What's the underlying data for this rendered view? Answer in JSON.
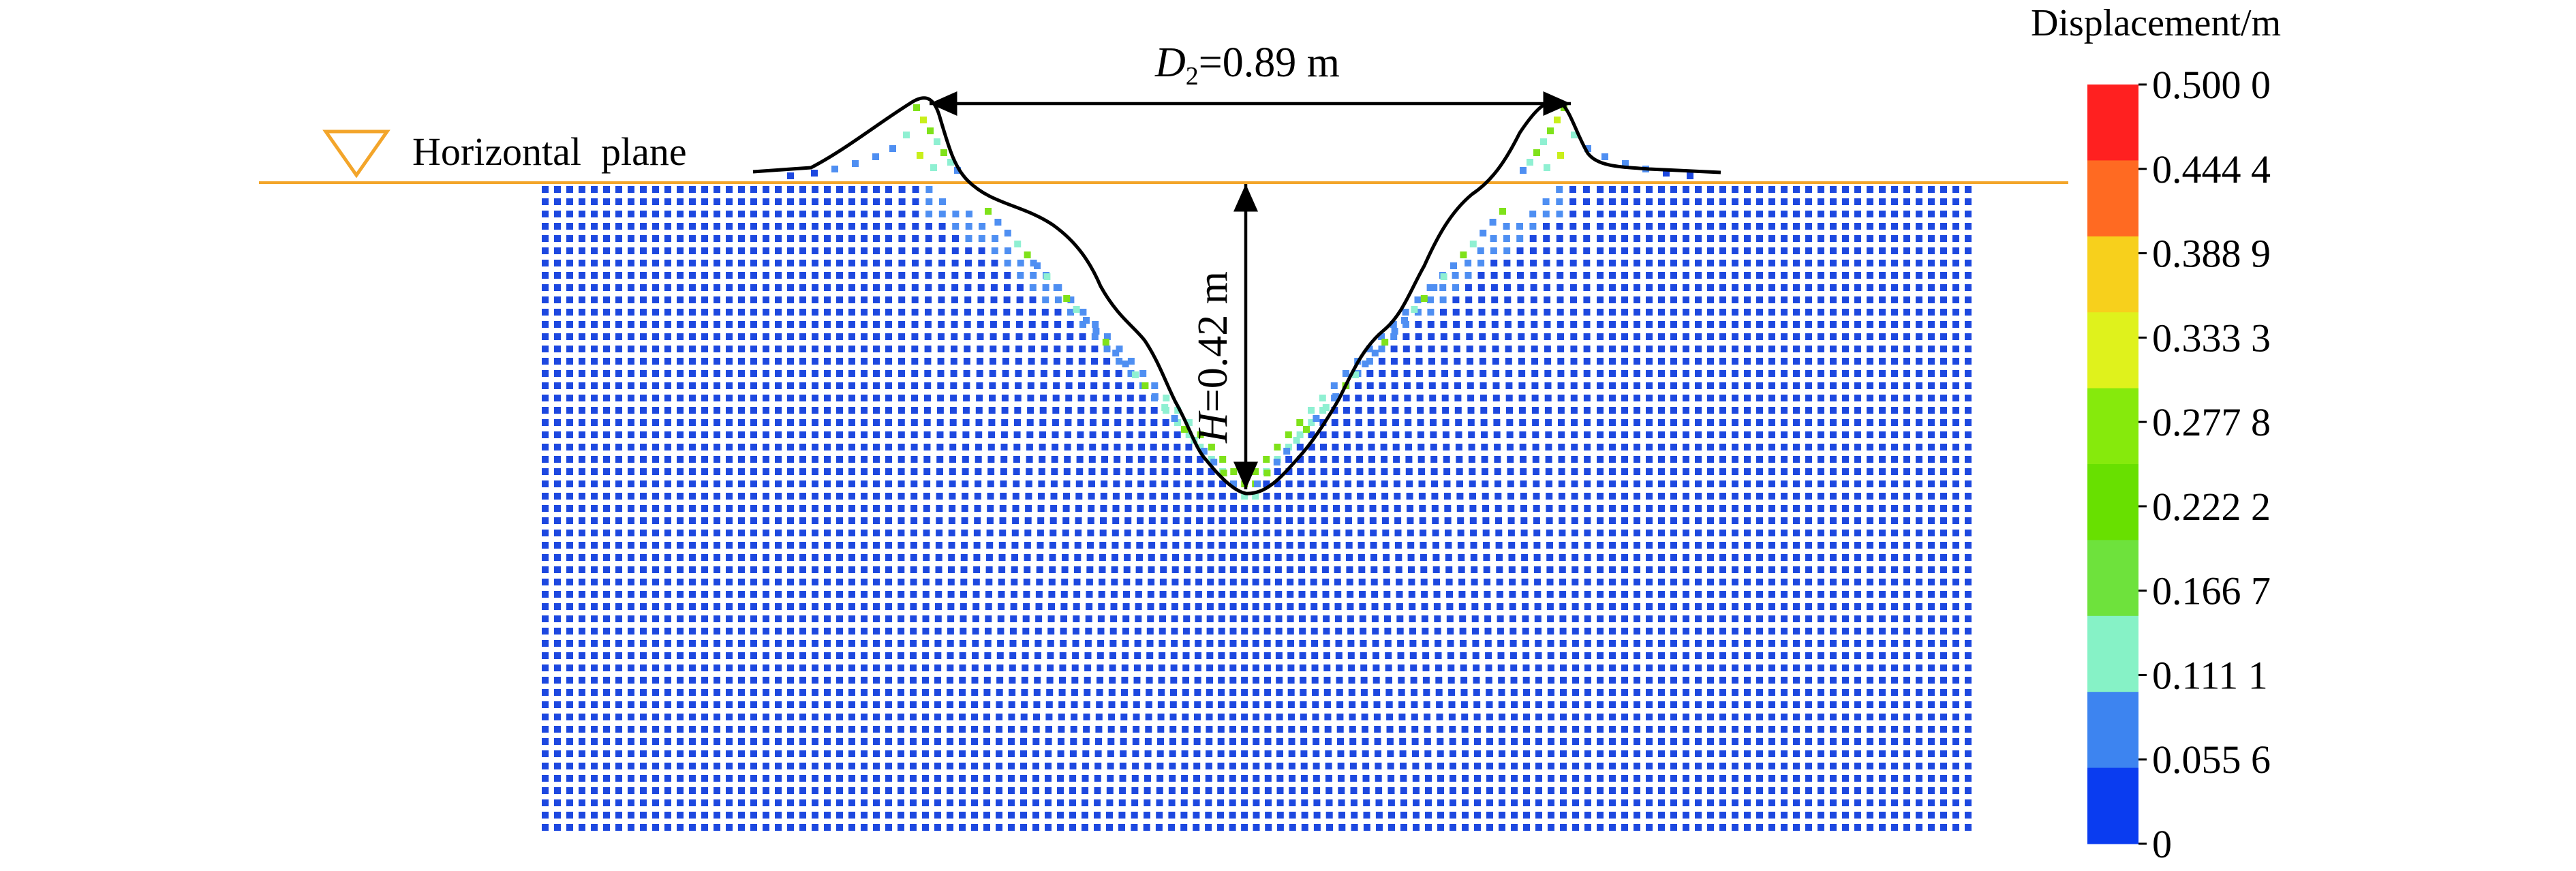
{
  "figure": {
    "legend": {
      "title": "Displacement/m",
      "ticks": [
        "0.500 0",
        "0.444 4",
        "0.388 9",
        "0.333 3",
        "0.277 8",
        "0.222 2",
        "0.166 7",
        "0.111 1",
        "0.055 6",
        "0"
      ],
      "colors": [
        "#ff2020",
        "#ff6a22",
        "#f7d01c",
        "#dff21c",
        "#86ea0c",
        "#68e000",
        "#6ee23c",
        "#86f2c6",
        "#3d84f0",
        "#0a3cf0"
      ]
    },
    "water_level": {
      "label": "Horizontal  plane",
      "color": "#f3a52a"
    },
    "diameter": {
      "symbol": "D",
      "subscript": "2",
      "value_text": "=0.89 m"
    },
    "depth": {
      "symbol": "H",
      "value_text": "=0.42 m"
    },
    "particle_colors": {
      "base": "#1d48e0",
      "light": "#4f8ff2",
      "cyan": "#8ff0d2",
      "green": "#7fe21a",
      "lime": "#c9ef1a"
    }
  }
}
